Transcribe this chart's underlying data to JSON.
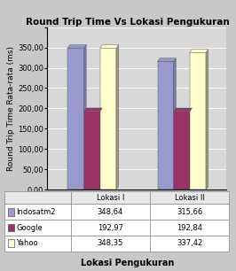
{
  "title": "Round Trip Time Vs Lokasi Pengukuran",
  "xlabel": "Lokasi Pengukuran",
  "ylabel": "Round Trip Time Rata-rata (ms)",
  "categories": [
    "Lokasi I",
    "Lokasi II"
  ],
  "series": [
    {
      "label": "Indosatm2",
      "values": [
        348.64,
        315.66
      ],
      "color": "#9999cc",
      "side_color": "#7777aa"
    },
    {
      "label": "Google",
      "values": [
        192.97,
        192.84
      ],
      "color": "#993366",
      "side_color": "#771144"
    },
    {
      "label": "Yahoo",
      "values": [
        348.35,
        337.42
      ],
      "color": "#ffffcc",
      "side_color": "#999977"
    }
  ],
  "ylim": [
    0,
    400
  ],
  "yticks": [
    0,
    50,
    100,
    150,
    200,
    250,
    300,
    350,
    400
  ],
  "ytick_labels": [
    "0,00",
    "50,00",
    "100,00",
    "150,00",
    "200,00",
    "250,00",
    "300,00",
    "350,00",
    ""
  ],
  "table_data": [
    [
      "Indosatm2",
      "348,64",
      "315,66"
    ],
    [
      "Google",
      "192,97",
      "192,84"
    ],
    [
      "Yahoo",
      "348,35",
      "337,42"
    ]
  ],
  "bg_color": "#c8c8c8",
  "plot_bg_color": "#d8d8d8",
  "bar_width": 0.18,
  "title_fontsize": 7.5,
  "axis_label_fontsize": 6.5,
  "tick_fontsize": 6,
  "table_fontsize": 6,
  "xlabel_fontsize": 7
}
